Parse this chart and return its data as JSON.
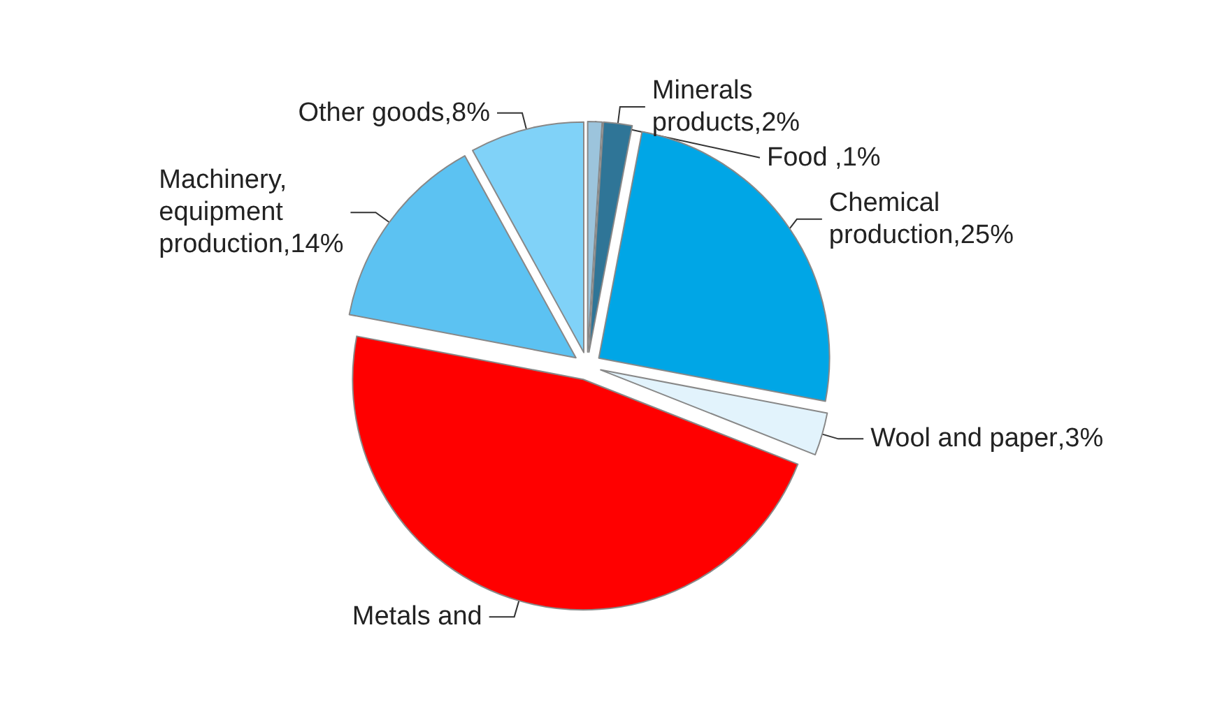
{
  "chart_data": {
    "type": "pie",
    "categories": [
      "Food ",
      "Minerals products",
      "Chemical production",
      "Wool and paper",
      "Metals and",
      "Machinery, equipment production",
      "Other goods"
    ],
    "values": [
      1,
      2,
      25,
      3,
      47,
      14,
      8
    ],
    "value_labels": [
      ",1%",
      ",2%",
      ",25%",
      ",3%",
      null,
      ",14%",
      ",8%"
    ],
    "colors": [
      "#9cc4dc",
      "#2f7597",
      "#00a6e6",
      "#e2f3fc",
      "#ff0000",
      "#5cc2f2",
      "#80d2f8"
    ],
    "legend": false
  }
}
